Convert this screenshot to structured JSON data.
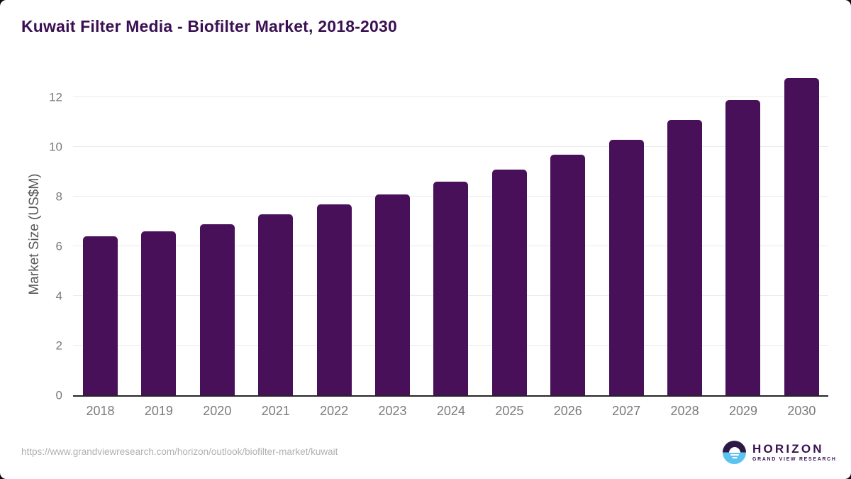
{
  "header": {
    "title": "Kuwait Filter Media - Biofilter Market, 2018-2030"
  },
  "chart_data": {
    "type": "bar",
    "title": "Kuwait Filter Media - Biofilter Market, 2018-2030",
    "categories": [
      "2018",
      "2019",
      "2020",
      "2021",
      "2022",
      "2023",
      "2024",
      "2025",
      "2026",
      "2027",
      "2028",
      "2029",
      "2030"
    ],
    "values": [
      6.4,
      6.6,
      6.9,
      7.3,
      7.7,
      8.1,
      8.6,
      9.1,
      9.7,
      10.3,
      11.1,
      11.9,
      12.8
    ],
    "xlabel": "",
    "ylabel": "Market Size (US$M)",
    "ylim": [
      0,
      13.1
    ],
    "yticks": [
      0,
      2,
      4,
      6,
      8,
      10,
      12
    ],
    "grid": true,
    "legend": false,
    "bar_color": "#49105A"
  },
  "footer": {
    "source_url": "https://www.grandviewresearch.com/horizon/outlook/biofilter-market/kuwait",
    "logo": {
      "brand": "HORIZON",
      "tagline": "GRAND VIEW RESEARCH"
    }
  },
  "colors": {
    "bar": "#49105A",
    "title_text": "#3A1053",
    "tick_label": "#7A7B7E",
    "axis_label": "#565759",
    "gridline": "#EBEBEB",
    "axis_line": "#262626",
    "url_text": "#AFB1B4",
    "logo_purple": "#3A1053",
    "logo_dark_half": "#2C1A45",
    "logo_blue_half": "#5CC3F1",
    "background": "#FFFFFF"
  }
}
